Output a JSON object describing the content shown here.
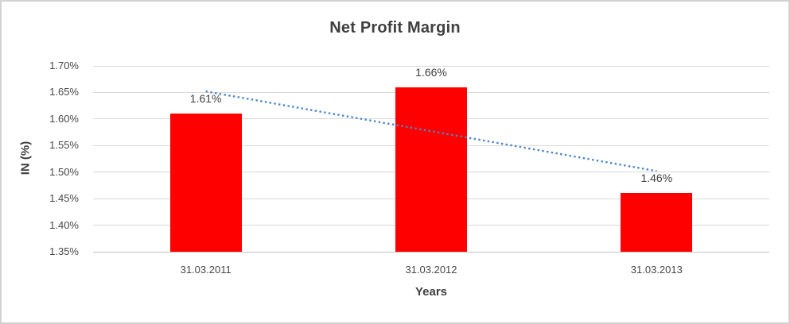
{
  "chart_data": {
    "type": "bar",
    "title": "Net Profit Margin",
    "categories": [
      "31.03.2011",
      "31.03.2012",
      "31.03.2013"
    ],
    "values": [
      1.61,
      1.66,
      1.46
    ],
    "data_labels": [
      "1.61%",
      "1.66%",
      "1.46%"
    ],
    "xlabel": "Years",
    "ylabel": "IN (%)",
    "ylim": [
      1.35,
      1.7
    ],
    "ytick_labels": [
      "1.70%",
      "1.65%",
      "1.60%",
      "1.55%",
      "1.50%",
      "1.45%",
      "1.40%",
      "1.35%"
    ],
    "grid": true,
    "legend": "none",
    "bar_color": "#FF0000",
    "trendline": {
      "type": "linear",
      "style": "dotted",
      "color": "#4A86C7",
      "start_value": 1.652,
      "end_value": 1.502
    },
    "style_colors": {
      "title_text": "#3F3F3F",
      "axis_text": "#474747",
      "gridline": "#D9D9D9",
      "axis_line": "#C2C2C2",
      "frame_border": "#D2D2D2"
    }
  }
}
